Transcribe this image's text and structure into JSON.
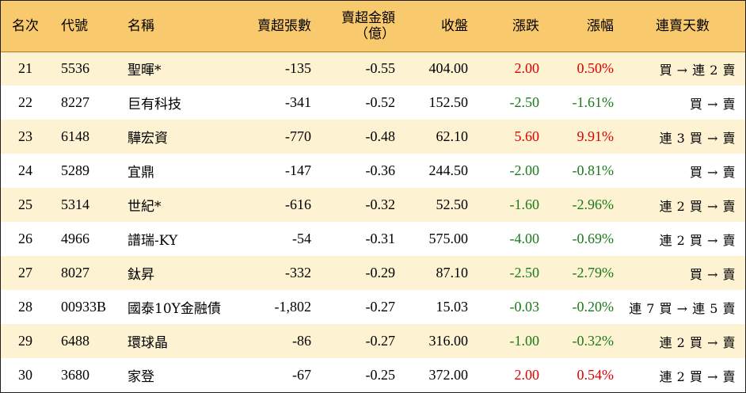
{
  "header": {
    "rank": "名次",
    "code": "代號",
    "name": "名稱",
    "sell_shares": "賣超張數",
    "sell_amount_line1": "賣超金額",
    "sell_amount_line2": "（億）",
    "close": "收盤",
    "change": "漲跌",
    "change_pct": "漲幅",
    "streak": "連賣天數"
  },
  "colors": {
    "header_bg": "#f9c96e",
    "stripe_bg": "#fdf2d2",
    "up": "#e00000",
    "down": "#1a7a1a"
  },
  "rows": [
    {
      "rank": "21",
      "code": "5536",
      "name": "聖暉*",
      "sell_shares": "-135",
      "sell_amount": "-0.55",
      "close": "404.00",
      "change": "2.00",
      "change_pct": "0.50%",
      "streak": "買 → 連 2 賣",
      "dir": "up"
    },
    {
      "rank": "22",
      "code": "8227",
      "name": "巨有科技",
      "sell_shares": "-341",
      "sell_amount": "-0.52",
      "close": "152.50",
      "change": "-2.50",
      "change_pct": "-1.61%",
      "streak": "買 → 賣",
      "dir": "down"
    },
    {
      "rank": "23",
      "code": "6148",
      "name": "驊宏資",
      "sell_shares": "-770",
      "sell_amount": "-0.48",
      "close": "62.10",
      "change": "5.60",
      "change_pct": "9.91%",
      "streak": "連 3 買 → 賣",
      "dir": "up"
    },
    {
      "rank": "24",
      "code": "5289",
      "name": "宜鼎",
      "sell_shares": "-147",
      "sell_amount": "-0.36",
      "close": "244.50",
      "change": "-2.00",
      "change_pct": "-0.81%",
      "streak": "買 → 賣",
      "dir": "down"
    },
    {
      "rank": "25",
      "code": "5314",
      "name": "世紀*",
      "sell_shares": "-616",
      "sell_amount": "-0.32",
      "close": "52.50",
      "change": "-1.60",
      "change_pct": "-2.96%",
      "streak": "連 2 買 → 賣",
      "dir": "down"
    },
    {
      "rank": "26",
      "code": "4966",
      "name": "譜瑞-KY",
      "sell_shares": "-54",
      "sell_amount": "-0.31",
      "close": "575.00",
      "change": "-4.00",
      "change_pct": "-0.69%",
      "streak": "連 2 買 → 賣",
      "dir": "down"
    },
    {
      "rank": "27",
      "code": "8027",
      "name": "鈦昇",
      "sell_shares": "-332",
      "sell_amount": "-0.29",
      "close": "87.10",
      "change": "-2.50",
      "change_pct": "-2.79%",
      "streak": "買 → 賣",
      "dir": "down"
    },
    {
      "rank": "28",
      "code": "00933B",
      "name": "國泰10Y金融債",
      "sell_shares": "-1,802",
      "sell_amount": "-0.27",
      "close": "15.03",
      "change": "-0.03",
      "change_pct": "-0.20%",
      "streak": "連 7 買 → 連 5 賣",
      "dir": "down"
    },
    {
      "rank": "29",
      "code": "6488",
      "name": "環球晶",
      "sell_shares": "-86",
      "sell_amount": "-0.27",
      "close": "316.00",
      "change": "-1.00",
      "change_pct": "-0.32%",
      "streak": "連 2 買 → 賣",
      "dir": "down"
    },
    {
      "rank": "30",
      "code": "3680",
      "name": "家登",
      "sell_shares": "-67",
      "sell_amount": "-0.25",
      "close": "372.00",
      "change": "2.00",
      "change_pct": "0.54%",
      "streak": "連 2 買 → 賣",
      "dir": "up"
    }
  ]
}
